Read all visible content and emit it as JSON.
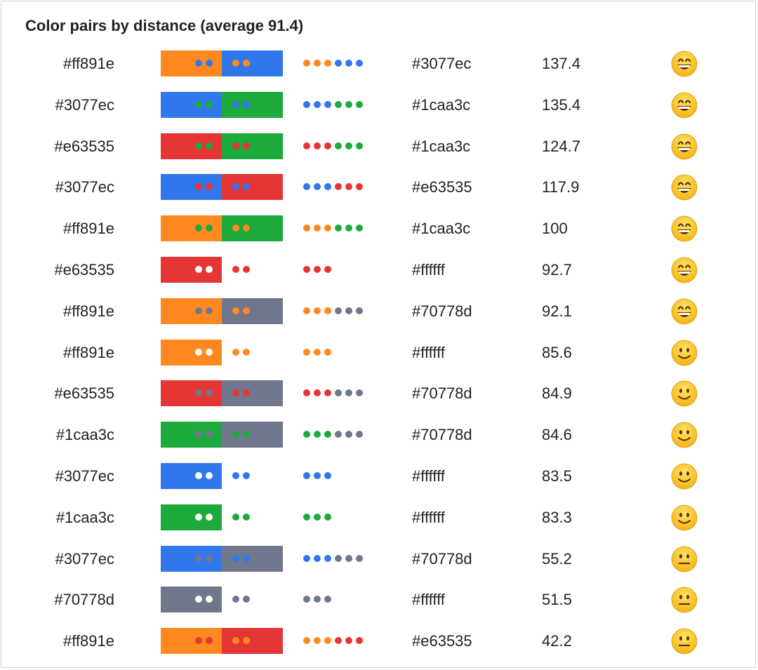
{
  "title": "Color pairs by distance (average 91.4)",
  "rows": [
    {
      "a": "#ff891e",
      "b": "#3077ec",
      "distance": "137.4",
      "emoji": "grin"
    },
    {
      "a": "#3077ec",
      "b": "#1caa3c",
      "distance": "135.4",
      "emoji": "grin"
    },
    {
      "a": "#e63535",
      "b": "#1caa3c",
      "distance": "124.7",
      "emoji": "grin"
    },
    {
      "a": "#3077ec",
      "b": "#e63535",
      "distance": "117.9",
      "emoji": "grin"
    },
    {
      "a": "#ff891e",
      "b": "#1caa3c",
      "distance": "100",
      "emoji": "grin"
    },
    {
      "a": "#e63535",
      "b": "#ffffff",
      "distance": "92.7",
      "emoji": "grin"
    },
    {
      "a": "#ff891e",
      "b": "#70778d",
      "distance": "92.1",
      "emoji": "grin"
    },
    {
      "a": "#ff891e",
      "b": "#ffffff",
      "distance": "85.6",
      "emoji": "smile"
    },
    {
      "a": "#e63535",
      "b": "#70778d",
      "distance": "84.9",
      "emoji": "smile"
    },
    {
      "a": "#1caa3c",
      "b": "#70778d",
      "distance": "84.6",
      "emoji": "smile"
    },
    {
      "a": "#3077ec",
      "b": "#ffffff",
      "distance": "83.5",
      "emoji": "smile"
    },
    {
      "a": "#1caa3c",
      "b": "#ffffff",
      "distance": "83.3",
      "emoji": "smile"
    },
    {
      "a": "#3077ec",
      "b": "#70778d",
      "distance": "55.2",
      "emoji": "neutral"
    },
    {
      "a": "#70778d",
      "b": "#ffffff",
      "distance": "51.5",
      "emoji": "neutral"
    },
    {
      "a": "#ff891e",
      "b": "#e63535",
      "distance": "42.2",
      "emoji": "neutral"
    }
  ]
}
